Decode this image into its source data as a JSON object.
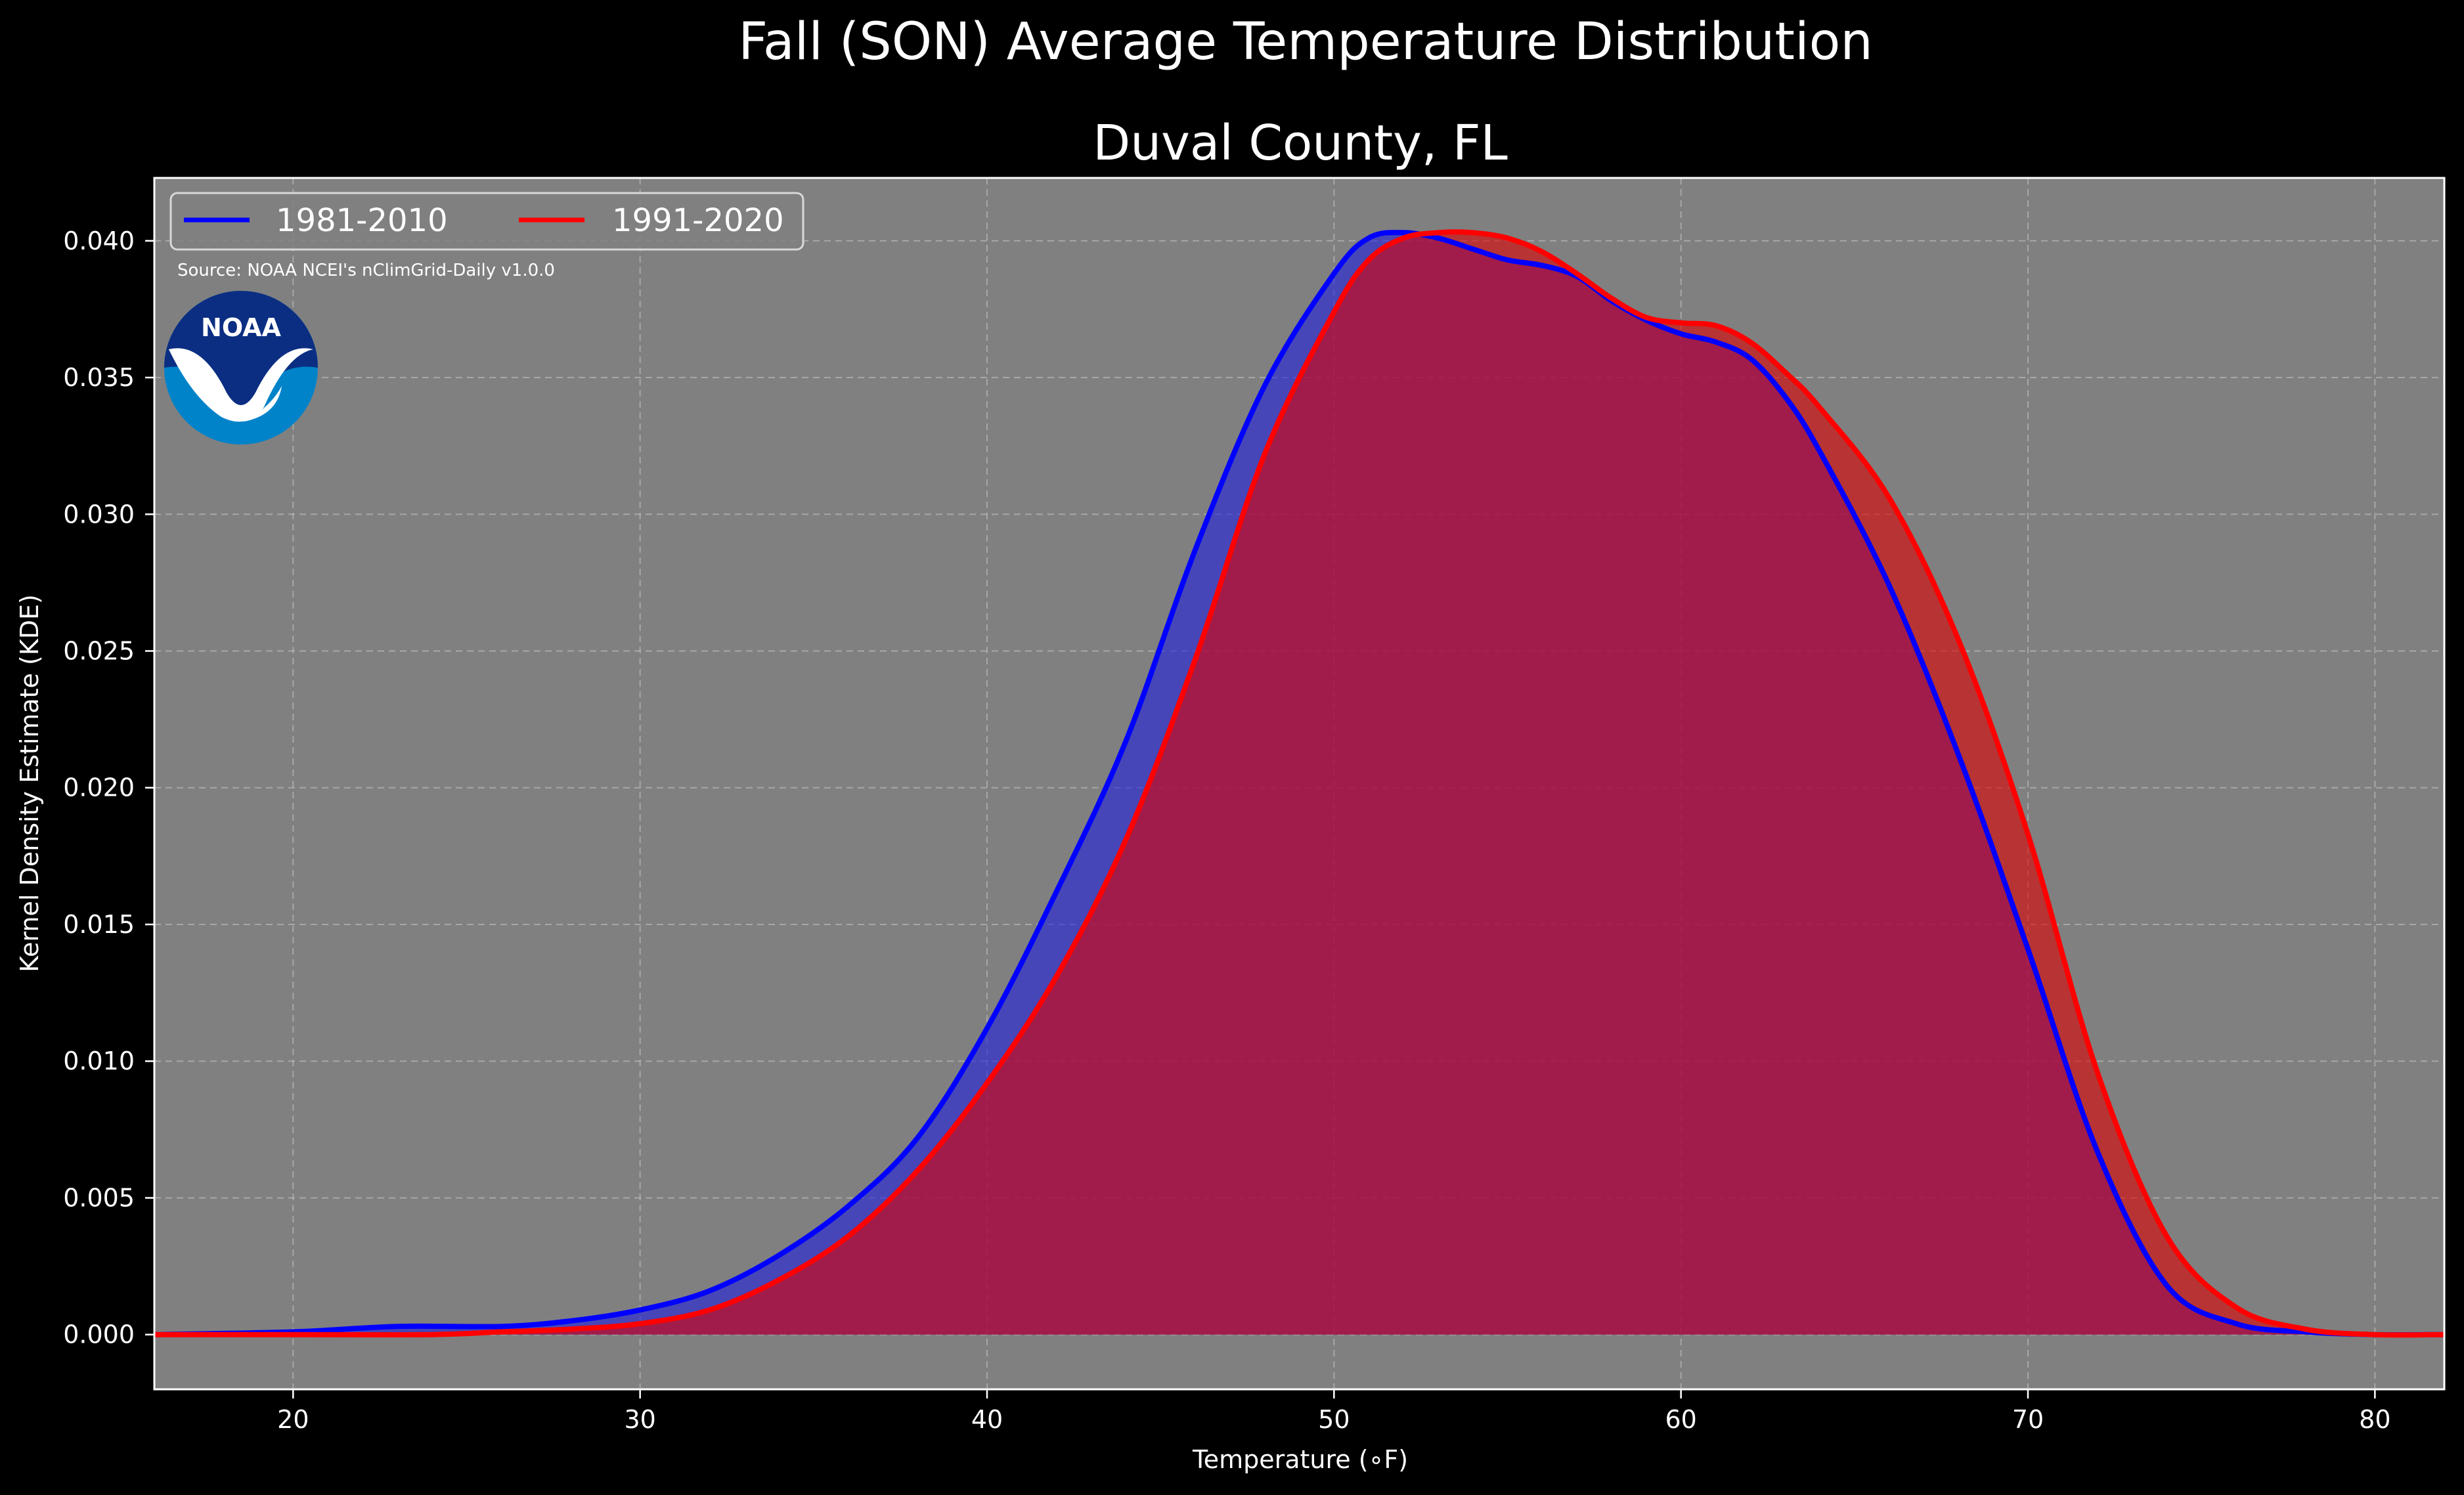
{
  "chart_data": {
    "type": "area",
    "suptitle": "Fall (SON) Average Temperature Distribution",
    "title": "Duval County, FL",
    "xlabel": "Temperature (∘F)",
    "ylabel": "Kernel Density Estimate (KDE)",
    "xlim": [
      16.0,
      82.0
    ],
    "ylim": [
      -0.002,
      0.0423
    ],
    "xticks": [
      20,
      30,
      40,
      50,
      60,
      70,
      80
    ],
    "yticks": [
      0.0,
      0.005,
      0.01,
      0.015,
      0.02,
      0.025,
      0.03,
      0.035,
      0.04
    ],
    "ytick_labels": [
      "0.000",
      "0.005",
      "0.010",
      "0.015",
      "0.020",
      "0.025",
      "0.030",
      "0.035",
      "0.040"
    ],
    "grid": true,
    "legend_position": "top-left",
    "source_text": "Source: NOAA NCEI's nClimGrid-Daily v1.0.0",
    "logo_text": "NOAA",
    "colors": {
      "background": "#000000",
      "plot_background": "#808080",
      "series_1_line": "#0000ff",
      "series_1_fill": "#1f1fdd",
      "series_2_line": "#ff0000",
      "series_2_fill": "#dd0000",
      "logo_navy": "#0b2e82",
      "logo_blue": "#0083c9"
    },
    "series": [
      {
        "name": "1981-2010",
        "x": [
          16,
          20,
          23,
          26,
          28,
          30,
          32,
          34,
          36,
          38,
          40,
          42,
          44,
          46,
          48,
          50,
          51,
          52,
          53,
          54,
          55,
          56,
          57,
          58,
          59,
          60,
          61,
          62,
          63,
          64,
          66,
          68,
          70,
          72,
          74,
          76,
          78,
          80,
          82
        ],
        "y": [
          0.0,
          0.0001,
          0.0003,
          0.0003,
          0.0005,
          0.0009,
          0.0016,
          0.0029,
          0.0047,
          0.0072,
          0.0112,
          0.0162,
          0.0217,
          0.0287,
          0.0347,
          0.0388,
          0.0401,
          0.0403,
          0.0401,
          0.0397,
          0.0393,
          0.0391,
          0.0387,
          0.0378,
          0.0371,
          0.0366,
          0.0363,
          0.0357,
          0.0343,
          0.0323,
          0.0274,
          0.0212,
          0.0141,
          0.0067,
          0.0018,
          0.0004,
          0.0001,
          0.0,
          0.0
        ]
      },
      {
        "name": "1991-2020",
        "x": [
          16,
          20,
          24,
          26,
          28,
          30,
          32,
          34,
          36,
          38,
          40,
          42,
          44,
          46,
          48,
          50,
          51,
          52,
          53,
          54,
          55,
          56,
          57,
          58,
          59,
          60,
          61,
          62,
          63,
          64,
          66,
          68,
          70,
          72,
          74,
          76,
          78,
          80,
          82
        ],
        "y": [
          0.0,
          0.0,
          0.0,
          0.0001,
          0.0002,
          0.0004,
          0.0009,
          0.002,
          0.0036,
          0.006,
          0.0092,
          0.0131,
          0.0181,
          0.0247,
          0.0322,
          0.0374,
          0.0393,
          0.0401,
          0.0403,
          0.0403,
          0.0401,
          0.0396,
          0.0388,
          0.0379,
          0.0372,
          0.037,
          0.0369,
          0.0363,
          0.0352,
          0.0339,
          0.0306,
          0.0254,
          0.0183,
          0.0096,
          0.0036,
          0.001,
          0.0002,
          0.0,
          0.0
        ]
      }
    ]
  }
}
